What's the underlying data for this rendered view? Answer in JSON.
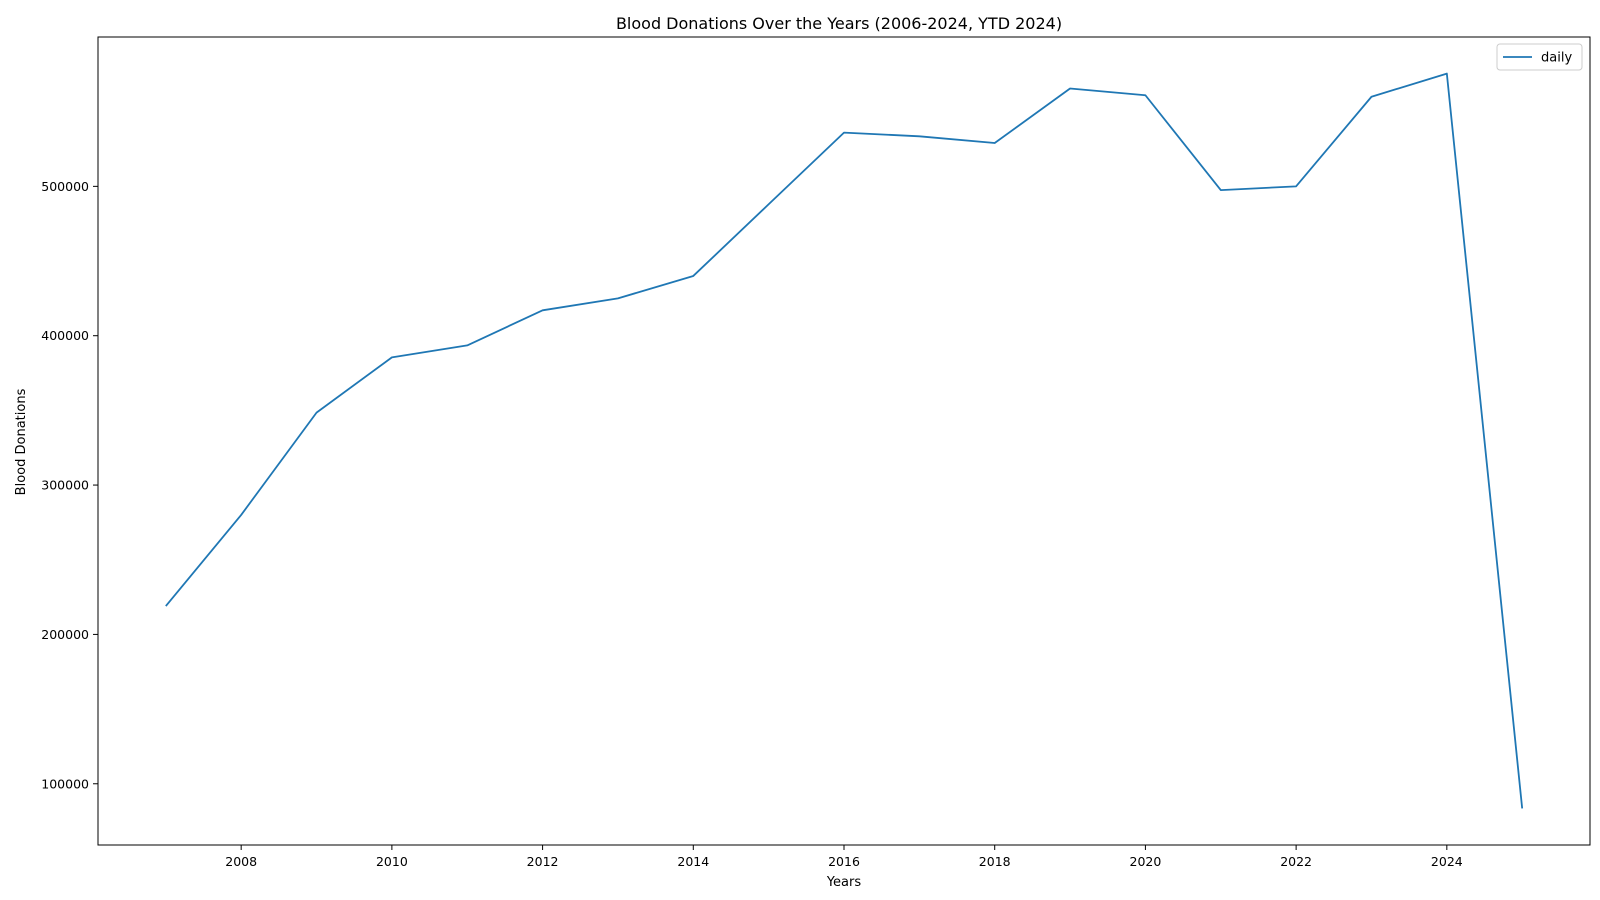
{
  "chart_data": {
    "type": "line",
    "title": "Blood Donations Over the Years (2006-2024, YTD 2024)",
    "xlabel": "Years",
    "ylabel": "Blood Donations",
    "xlim": [
      2006.1,
      2025.9
    ],
    "ylim": [
      59000,
      600000
    ],
    "x_ticks": [
      2008,
      2010,
      2012,
      2014,
      2016,
      2018,
      2020,
      2022,
      2024
    ],
    "y_ticks": [
      100000,
      200000,
      300000,
      400000,
      500000
    ],
    "grid": false,
    "legend_position": "top-right",
    "series": [
      {
        "name": "daily",
        "color": "#1f77b4",
        "x": [
          2007,
          2008,
          2009,
          2010,
          2011,
          2012,
          2013,
          2014,
          2015,
          2016,
          2017,
          2018,
          2019,
          2020,
          2021,
          2022,
          2023,
          2024,
          2025
        ],
        "values": [
          219000,
          280000,
          348500,
          385500,
          393500,
          417000,
          425000,
          440000,
          488000,
          536000,
          533500,
          529000,
          565500,
          561000,
          497500,
          500000,
          560000,
          575500,
          83500
        ]
      }
    ]
  }
}
